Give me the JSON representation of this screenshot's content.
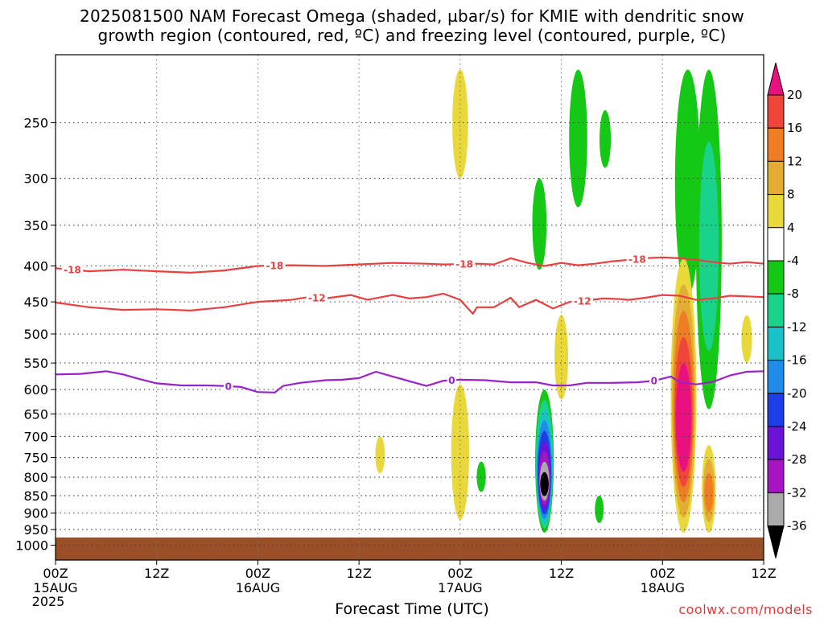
{
  "title": {
    "line1": "2025081500 NAM Forecast Omega (shaded, µbar/s) for KMIE with dendritic snow",
    "line2": "growth region (contoured, red, ºC) and freezing level (contoured, purple, ºC)"
  },
  "credit": "coolwx.com/models",
  "chart_data": {
    "type": "heatmap",
    "title": "2025081500 NAM Forecast Omega (shaded, µbar/s) for KMIE with dendritic snow growth region (contoured, red, ºC) and freezing level (contoured, purple, ºC)",
    "xlabel": "Forecast Time (UTC)",
    "ylabel": "",
    "x_unit": "forecast hour",
    "xlim": [
      0,
      84
    ],
    "y_scale": "log-pressure",
    "ylim": [
      1050,
      200
    ],
    "grid": true,
    "x_ticks": [
      {
        "hour": 0,
        "label": "00Z",
        "sub1": "15AUG",
        "sub2": "2025"
      },
      {
        "hour": 12,
        "label": "12Z",
        "sub1": "",
        "sub2": ""
      },
      {
        "hour": 24,
        "label": "00Z",
        "sub1": "16AUG",
        "sub2": ""
      },
      {
        "hour": 36,
        "label": "12Z",
        "sub1": "",
        "sub2": ""
      },
      {
        "hour": 48,
        "label": "00Z",
        "sub1": "17AUG",
        "sub2": ""
      },
      {
        "hour": 60,
        "label": "12Z",
        "sub1": "",
        "sub2": ""
      },
      {
        "hour": 72,
        "label": "00Z",
        "sub1": "18AUG",
        "sub2": ""
      },
      {
        "hour": 84,
        "label": "12Z",
        "sub1": "",
        "sub2": ""
      }
    ],
    "y_ticks": [
      250,
      300,
      350,
      400,
      450,
      500,
      550,
      600,
      650,
      700,
      750,
      800,
      850,
      900,
      950,
      1000
    ],
    "colorbar": {
      "labels": [
        "20",
        "16",
        "12",
        "8",
        "4",
        "-4",
        "-8",
        "-12",
        "-16",
        "-20",
        "-24",
        "-28",
        "-32",
        "-36"
      ],
      "bins": [
        {
          "min": 20,
          "max": 99,
          "color": "#e8117f"
        },
        {
          "min": 16,
          "max": 20,
          "color": "#f0453a"
        },
        {
          "min": 12,
          "max": 16,
          "color": "#ef7d24"
        },
        {
          "min": 8,
          "max": 12,
          "color": "#e3ac34"
        },
        {
          "min": 4,
          "max": 8,
          "color": "#e8d83c"
        },
        {
          "min": -4,
          "max": 4,
          "color": "#ffffff"
        },
        {
          "min": -8,
          "max": -4,
          "color": "#16c816"
        },
        {
          "min": -12,
          "max": -8,
          "color": "#19d38a"
        },
        {
          "min": -16,
          "max": -12,
          "color": "#19c2c8"
        },
        {
          "min": -20,
          "max": -16,
          "color": "#1f8de8"
        },
        {
          "min": -24,
          "max": -20,
          "color": "#1d3fe6"
        },
        {
          "min": -28,
          "max": -24,
          "color": "#6c13d8"
        },
        {
          "min": -32,
          "max": -28,
          "color": "#a714c4"
        },
        {
          "min": -36,
          "max": -32,
          "color": "#aaaaaa"
        },
        {
          "min": -99,
          "max": -36,
          "color": "#000000"
        }
      ]
    },
    "contours": [
      {
        "level": -18,
        "label": "-18",
        "color": "#e84040",
        "points": [
          [
            0,
            403
          ],
          [
            4,
            407
          ],
          [
            8,
            405
          ],
          [
            12,
            407
          ],
          [
            16,
            409
          ],
          [
            20,
            406
          ],
          [
            24,
            400
          ],
          [
            28,
            399
          ],
          [
            32,
            400
          ],
          [
            36,
            398
          ],
          [
            40,
            396
          ],
          [
            44,
            397
          ],
          [
            46,
            398
          ],
          [
            50,
            397
          ],
          [
            52,
            398
          ],
          [
            54,
            390
          ],
          [
            56,
            396
          ],
          [
            58,
            400
          ],
          [
            60,
            396
          ],
          [
            62,
            399
          ],
          [
            64,
            397
          ],
          [
            66,
            394
          ],
          [
            68,
            392
          ],
          [
            70,
            390
          ],
          [
            72,
            389
          ],
          [
            74,
            390
          ],
          [
            76,
            392
          ],
          [
            78,
            395
          ],
          [
            80,
            397
          ],
          [
            82,
            395
          ],
          [
            84,
            397
          ]
        ],
        "label_hours": [
          2,
          26,
          48.5,
          69
        ]
      },
      {
        "level": -12,
        "label": "-12",
        "color": "#e84040",
        "points": [
          [
            0,
            451
          ],
          [
            4,
            458
          ],
          [
            8,
            462
          ],
          [
            12,
            461
          ],
          [
            16,
            463
          ],
          [
            20,
            458
          ],
          [
            24,
            450
          ],
          [
            28,
            447
          ],
          [
            30,
            443
          ],
          [
            32,
            445
          ],
          [
            35,
            440
          ],
          [
            37,
            447
          ],
          [
            40,
            440
          ],
          [
            42,
            445
          ],
          [
            44,
            443
          ],
          [
            46,
            438
          ],
          [
            48,
            447
          ],
          [
            49.5,
            468
          ],
          [
            50,
            458
          ],
          [
            52,
            458
          ],
          [
            54,
            444
          ],
          [
            55,
            458
          ],
          [
            57,
            447
          ],
          [
            59,
            460
          ],
          [
            61,
            450
          ],
          [
            63,
            448
          ],
          [
            65,
            445
          ],
          [
            67,
            446
          ],
          [
            68,
            447
          ],
          [
            70,
            444
          ],
          [
            72,
            440
          ],
          [
            74,
            441
          ],
          [
            76,
            447
          ],
          [
            78,
            445
          ],
          [
            80,
            441
          ],
          [
            82,
            442
          ],
          [
            84,
            443
          ]
        ],
        "label_hours": [
          31,
          62.5
        ]
      },
      {
        "level": 0,
        "label": "0",
        "color": "#9a21c9",
        "points": [
          [
            0,
            571
          ],
          [
            3,
            570
          ],
          [
            6,
            565
          ],
          [
            8,
            571
          ],
          [
            10,
            580
          ],
          [
            12,
            588
          ],
          [
            15,
            592
          ],
          [
            18,
            592
          ],
          [
            20,
            593
          ],
          [
            22,
            595
          ],
          [
            24,
            605
          ],
          [
            26,
            606
          ],
          [
            27,
            593
          ],
          [
            29,
            587
          ],
          [
            32,
            582
          ],
          [
            34,
            581
          ],
          [
            36,
            578
          ],
          [
            38,
            566
          ],
          [
            40,
            575
          ],
          [
            42,
            584
          ],
          [
            44,
            593
          ],
          [
            46,
            583
          ],
          [
            48,
            581
          ],
          [
            51,
            582
          ],
          [
            54,
            586
          ],
          [
            57,
            586
          ],
          [
            59,
            592
          ],
          [
            61,
            592
          ],
          [
            63,
            587
          ],
          [
            66,
            587
          ],
          [
            69,
            586
          ],
          [
            71,
            583
          ],
          [
            73,
            575
          ],
          [
            74,
            585
          ],
          [
            76,
            590
          ],
          [
            78,
            585
          ],
          [
            80,
            573
          ],
          [
            82,
            566
          ],
          [
            84,
            565
          ]
        ],
        "label_hours": [
          20.5,
          47,
          71
        ]
      }
    ],
    "omega_features": [
      {
        "center_hour": 48.0,
        "top_hpa": 210,
        "bottom_hpa": 300,
        "min_omega": 4,
        "max_omega": 8
      },
      {
        "center_hour": 57.4,
        "top_hpa": 300,
        "bottom_hpa": 405,
        "min_omega": -8,
        "max_omega": -4
      },
      {
        "center_hour": 62.0,
        "top_hpa": 210,
        "bottom_hpa": 330,
        "min_omega": -8,
        "max_omega": -4
      },
      {
        "center_hour": 65.2,
        "top_hpa": 240,
        "bottom_hpa": 290,
        "min_omega": -8,
        "max_omega": -4
      },
      {
        "center_hour": 75.0,
        "top_hpa": 210,
        "bottom_hpa": 440,
        "min_omega": -8,
        "max_omega": -4
      },
      {
        "center_hour": 77.5,
        "top_hpa": 210,
        "bottom_hpa": 640,
        "min_omega": -12,
        "max_omega": -4
      },
      {
        "center_hour": 58.0,
        "top_hpa": 600,
        "bottom_hpa": 960,
        "min_omega": -40,
        "max_omega": -4
      },
      {
        "center_hour": 60.0,
        "top_hpa": 470,
        "bottom_hpa": 620,
        "min_omega": 4,
        "max_omega": 8
      },
      {
        "center_hour": 48.0,
        "top_hpa": 590,
        "bottom_hpa": 920,
        "min_omega": 4,
        "max_omega": 8
      },
      {
        "center_hour": 74.5,
        "top_hpa": 390,
        "bottom_hpa": 960,
        "min_omega": 4,
        "max_omega": 30
      },
      {
        "center_hour": 77.5,
        "top_hpa": 720,
        "bottom_hpa": 960,
        "min_omega": 4,
        "max_omega": 16
      },
      {
        "center_hour": 82.0,
        "top_hpa": 470,
        "bottom_hpa": 550,
        "min_omega": 4,
        "max_omega": 8
      },
      {
        "center_hour": 38.5,
        "top_hpa": 700,
        "bottom_hpa": 790,
        "min_omega": 4,
        "max_omega": 8
      },
      {
        "center_hour": 50.5,
        "top_hpa": 760,
        "bottom_hpa": 840,
        "min_omega": -8,
        "max_omega": -4
      },
      {
        "center_hour": 64.5,
        "top_hpa": 850,
        "bottom_hpa": 930,
        "min_omega": -8,
        "max_omega": -4
      }
    ],
    "terrain": {
      "color": "#9b4f26",
      "surface_hpa": 975,
      "label": ""
    }
  }
}
